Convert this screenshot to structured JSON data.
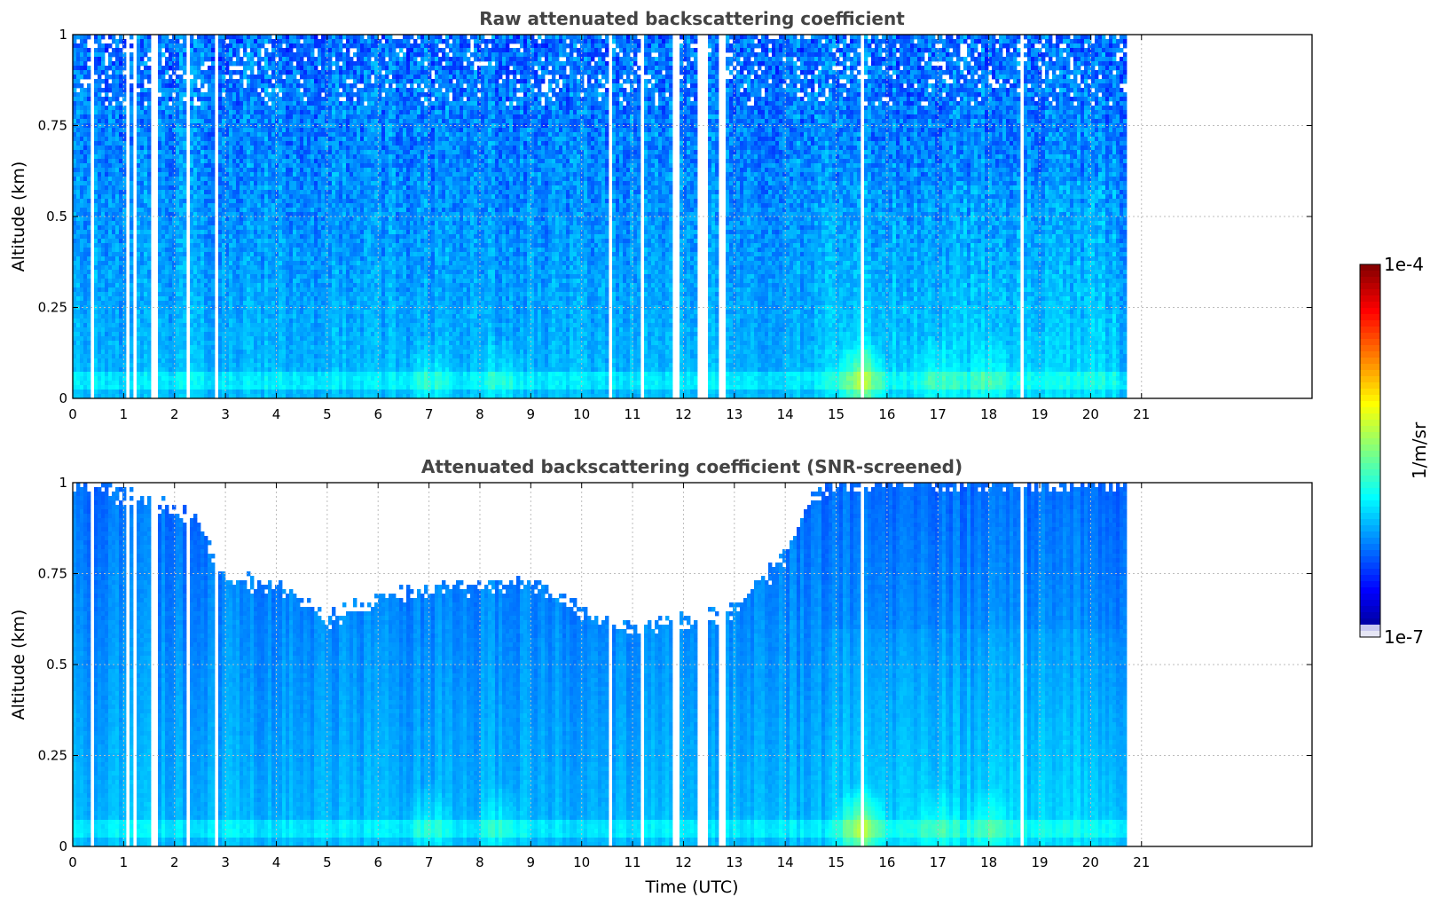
{
  "chart_data": [
    {
      "type": "heatmap",
      "title": "Raw attenuated backscattering coefficient",
      "xlabel": "",
      "ylabel": "Altitude (km)",
      "xlim": [
        0,
        24
      ],
      "ylim": [
        0,
        1
      ],
      "xticks": [
        "0",
        "1",
        "2",
        "3",
        "4",
        "5",
        "6",
        "7",
        "8",
        "9",
        "10",
        "11",
        "12",
        "13",
        "14",
        "15",
        "16",
        "17",
        "18",
        "19",
        "20",
        "21"
      ],
      "yticks": [
        "0",
        "0.25",
        "0.5",
        "0.75",
        "1"
      ],
      "grid": true,
      "data_end_hour": 20.65,
      "gaps_hours": [
        [
          0.38,
          0.42
        ],
        [
          0.95,
          1.0
        ],
        [
          1.05,
          1.12
        ],
        [
          1.18,
          1.25
        ],
        [
          1.52,
          1.68
        ],
        [
          2.22,
          2.33
        ],
        [
          2.78,
          2.85
        ],
        [
          10.55,
          10.58
        ],
        [
          11.17,
          11.2
        ],
        [
          11.8,
          11.92
        ],
        [
          12.3,
          12.45
        ],
        [
          12.7,
          12.82
        ],
        [
          15.5,
          15.52
        ],
        [
          18.65,
          18.68
        ]
      ],
      "hotspots": [
        {
          "hour": 15.5,
          "altitude_km": 0.05,
          "value": "3e-6"
        },
        {
          "hour": 17.0,
          "altitude_km": 0.05,
          "value": "1.5e-6"
        },
        {
          "hour": 18.0,
          "altitude_km": 0.05,
          "value": "1.5e-6"
        },
        {
          "hour": 7.0,
          "altitude_km": 0.05,
          "value": "1.2e-6"
        },
        {
          "hour": 8.4,
          "altitude_km": 0.05,
          "value": "1.2e-6"
        }
      ],
      "surface_band_km": [
        0.03,
        0.07
      ],
      "screened": false
    },
    {
      "type": "heatmap",
      "title": "Attenuated backscattering coefficient (SNR-screened)",
      "xlabel": "Time (UTC)",
      "ylabel": "Altitude (km)",
      "xlim": [
        0,
        24
      ],
      "ylim": [
        0,
        1
      ],
      "xticks": [
        "0",
        "1",
        "2",
        "3",
        "4",
        "5",
        "6",
        "7",
        "8",
        "9",
        "10",
        "11",
        "12",
        "13",
        "14",
        "15",
        "16",
        "17",
        "18",
        "19",
        "20",
        "21"
      ],
      "yticks": [
        "0",
        "0.25",
        "0.5",
        "0.75",
        "1"
      ],
      "grid": true,
      "data_end_hour": 20.65,
      "gaps_hours": [
        [
          0.38,
          0.42
        ],
        [
          0.95,
          1.0
        ],
        [
          1.05,
          1.12
        ],
        [
          1.18,
          1.25
        ],
        [
          1.52,
          1.68
        ],
        [
          2.22,
          2.33
        ],
        [
          2.78,
          2.85
        ],
        [
          10.55,
          10.58
        ],
        [
          11.17,
          11.2
        ],
        [
          11.8,
          11.92
        ],
        [
          12.3,
          12.45
        ],
        [
          12.7,
          12.82
        ],
        [
          15.5,
          15.52
        ],
        [
          18.65,
          18.68
        ]
      ],
      "screened_top_km_by_hour": [
        [
          0,
          1.0
        ],
        [
          1.5,
          0.95
        ],
        [
          2.5,
          0.9
        ],
        [
          3.0,
          0.72
        ],
        [
          4.0,
          0.73
        ],
        [
          5.0,
          0.62
        ],
        [
          6.0,
          0.68
        ],
        [
          7.0,
          0.7
        ],
        [
          8.0,
          0.72
        ],
        [
          9.0,
          0.72
        ],
        [
          10.0,
          0.65
        ],
        [
          11.0,
          0.6
        ],
        [
          12.0,
          0.62
        ],
        [
          13.0,
          0.65
        ],
        [
          14.0,
          0.8
        ],
        [
          14.5,
          0.95
        ],
        [
          15.0,
          1.0
        ],
        [
          20.65,
          1.0
        ]
      ],
      "screened": true
    }
  ],
  "colorbar": {
    "label": "1/m/sr",
    "min_label": "1e-7",
    "max_label": "1e-4",
    "scale": "log",
    "colormap": "jet"
  },
  "colors": {
    "frame": "#000000",
    "grid": "#bdbdbd",
    "title": "#444444"
  }
}
